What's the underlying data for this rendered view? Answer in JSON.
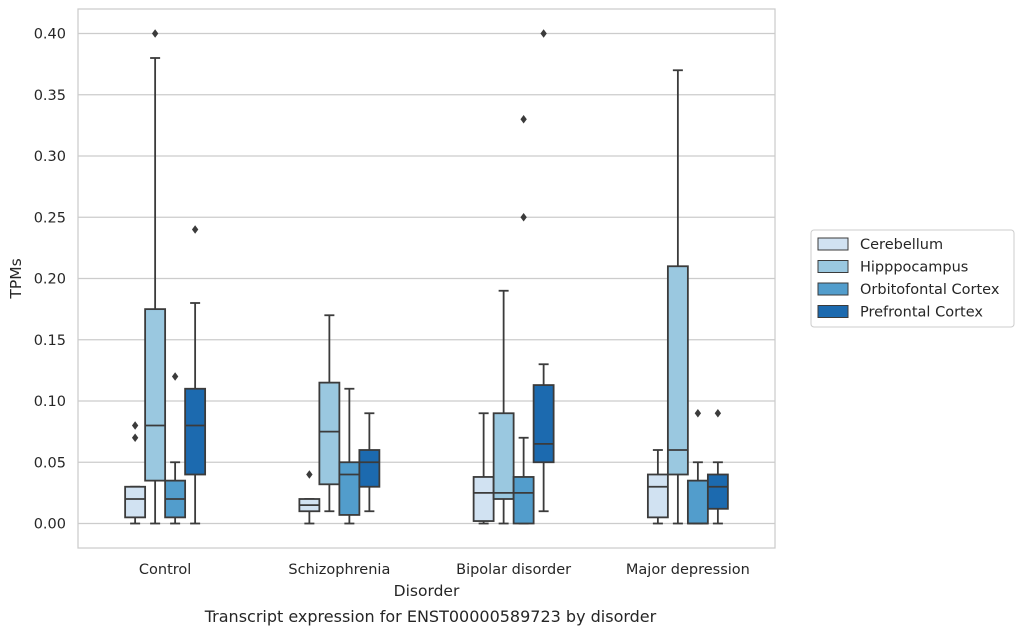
{
  "chart_data": {
    "type": "box",
    "caption": "Transcript expression for ENST00000589723 by disorder",
    "xlabel": "Disorder",
    "ylabel": "TPMs",
    "ylim": [
      -0.02,
      0.42
    ],
    "yticks": [
      "0.00",
      "0.05",
      "0.10",
      "0.15",
      "0.20",
      "0.25",
      "0.30",
      "0.35",
      "0.40"
    ],
    "ytick_values": [
      0,
      0.05,
      0.1,
      0.15,
      0.2,
      0.25,
      0.3,
      0.35,
      0.4
    ],
    "grid": true,
    "legend_position": "right",
    "categories": [
      "Control",
      "Schizophrenia",
      "Bipolar disorder",
      "Major depression"
    ],
    "series": [
      {
        "name": "Cerebellum",
        "color": "#d1e2f2",
        "boxes": [
          {
            "min": 0.0,
            "q1": 0.005,
            "median": 0.02,
            "q3": 0.03,
            "max": 0.03,
            "outliers": [
              0.07,
              0.08
            ]
          },
          {
            "min": 0.0,
            "q1": 0.01,
            "median": 0.015,
            "q3": 0.02,
            "max": 0.02,
            "outliers": [
              0.04
            ]
          },
          {
            "min": 0.0,
            "q1": 0.002,
            "median": 0.025,
            "q3": 0.038,
            "max": 0.09,
            "outliers": []
          },
          {
            "min": 0.0,
            "q1": 0.005,
            "median": 0.03,
            "q3": 0.04,
            "max": 0.06,
            "outliers": []
          }
        ]
      },
      {
        "name": "Hipppocampus",
        "color": "#9ac8e0",
        "boxes": [
          {
            "min": 0.0,
            "q1": 0.035,
            "median": 0.08,
            "q3": 0.175,
            "max": 0.38,
            "outliers": [
              0.4
            ]
          },
          {
            "min": 0.01,
            "q1": 0.032,
            "median": 0.075,
            "q3": 0.115,
            "max": 0.17,
            "outliers": []
          },
          {
            "min": 0.0,
            "q1": 0.02,
            "median": 0.025,
            "q3": 0.09,
            "max": 0.19,
            "outliers": []
          },
          {
            "min": 0.0,
            "q1": 0.04,
            "median": 0.06,
            "q3": 0.21,
            "max": 0.37,
            "outliers": []
          }
        ]
      },
      {
        "name": "Orbitofontal Cortex",
        "color": "#529dcc",
        "boxes": [
          {
            "min": 0.0,
            "q1": 0.005,
            "median": 0.02,
            "q3": 0.035,
            "max": 0.05,
            "outliers": [
              0.12
            ]
          },
          {
            "min": 0.0,
            "q1": 0.007,
            "median": 0.04,
            "q3": 0.05,
            "max": 0.11,
            "outliers": []
          },
          {
            "min": 0.0,
            "q1": 0.0,
            "median": 0.025,
            "q3": 0.038,
            "max": 0.07,
            "outliers": [
              0.25,
              0.33
            ]
          },
          {
            "min": 0.0,
            "q1": 0.0,
            "median": 0.0,
            "q3": 0.035,
            "max": 0.05,
            "outliers": [
              0.09
            ]
          }
        ]
      },
      {
        "name": "Prefrontal Cortex",
        "color": "#1c6aaf",
        "boxes": [
          {
            "min": 0.0,
            "q1": 0.04,
            "median": 0.08,
            "q3": 0.11,
            "max": 0.18,
            "outliers": [
              0.24
            ]
          },
          {
            "min": 0.01,
            "q1": 0.03,
            "median": 0.05,
            "q3": 0.06,
            "max": 0.09,
            "outliers": []
          },
          {
            "min": 0.01,
            "q1": 0.05,
            "median": 0.065,
            "q3": 0.113,
            "max": 0.13,
            "outliers": [
              0.4
            ]
          },
          {
            "min": 0.0,
            "q1": 0.012,
            "median": 0.03,
            "q3": 0.04,
            "max": 0.05,
            "outliers": [
              0.09
            ]
          }
        ]
      }
    ]
  }
}
